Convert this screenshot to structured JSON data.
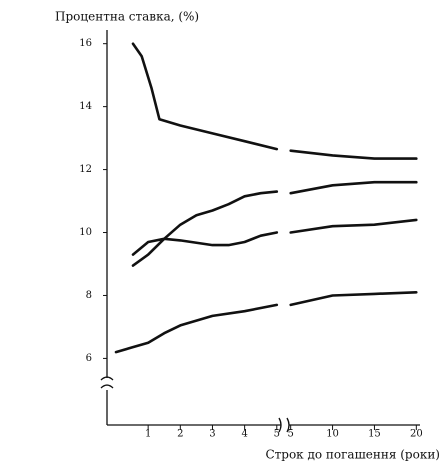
{
  "chart_data": {
    "type": "line",
    "y_label": "Процентна ставка, (%)",
    "x_label": "Строк до погашення (роки)",
    "ylim": [
      5.6,
      16.6
    ],
    "yticks": [
      6,
      8,
      10,
      12,
      14,
      16
    ],
    "xsegments": [
      {
        "xlim": [
          -0.28,
          5.1
        ],
        "xticks": [
          1,
          2,
          3,
          4,
          5
        ]
      },
      {
        "xlim": [
          4.8,
          20.2
        ],
        "xticks": [
          5,
          10,
          15,
          20
        ]
      }
    ],
    "series": [
      {
        "color": "#111111",
        "x": [
          0.53,
          0.8,
          1.1,
          1.35,
          2,
          3,
          4,
          5,
          null,
          5,
          10,
          15,
          20
        ],
        "values": [
          16.0,
          15.6,
          14.6,
          13.6,
          13.4,
          13.15,
          12.9,
          12.65,
          null,
          12.6,
          12.45,
          12.35,
          12.35
        ]
      },
      {
        "color": "#111111",
        "x": [
          0.53,
          1,
          1.5,
          2,
          2.5,
          3,
          3.5,
          4,
          4.5,
          5,
          null,
          5,
          10,
          15,
          20
        ],
        "values": [
          8.95,
          9.3,
          9.8,
          10.25,
          10.55,
          10.7,
          10.9,
          11.15,
          11.25,
          11.3,
          null,
          11.25,
          11.5,
          11.6,
          11.6
        ]
      },
      {
        "color": "#111111",
        "x": [
          0.53,
          1,
          1.5,
          2,
          3,
          3.5,
          4,
          4.5,
          5,
          null,
          5,
          10,
          15,
          20
        ],
        "values": [
          9.3,
          9.7,
          9.8,
          9.75,
          9.6,
          9.6,
          9.7,
          9.9,
          10.0,
          null,
          10.0,
          10.2,
          10.25,
          10.4
        ]
      },
      {
        "color": "#111111",
        "x": [
          0,
          0.5,
          1,
          1.5,
          2,
          3,
          4,
          5,
          null,
          5,
          10,
          15,
          20
        ],
        "values": [
          6.2,
          6.35,
          6.5,
          6.8,
          7.05,
          7.35,
          7.5,
          7.7,
          null,
          7.7,
          8.0,
          8.05,
          8.1
        ]
      }
    ]
  }
}
